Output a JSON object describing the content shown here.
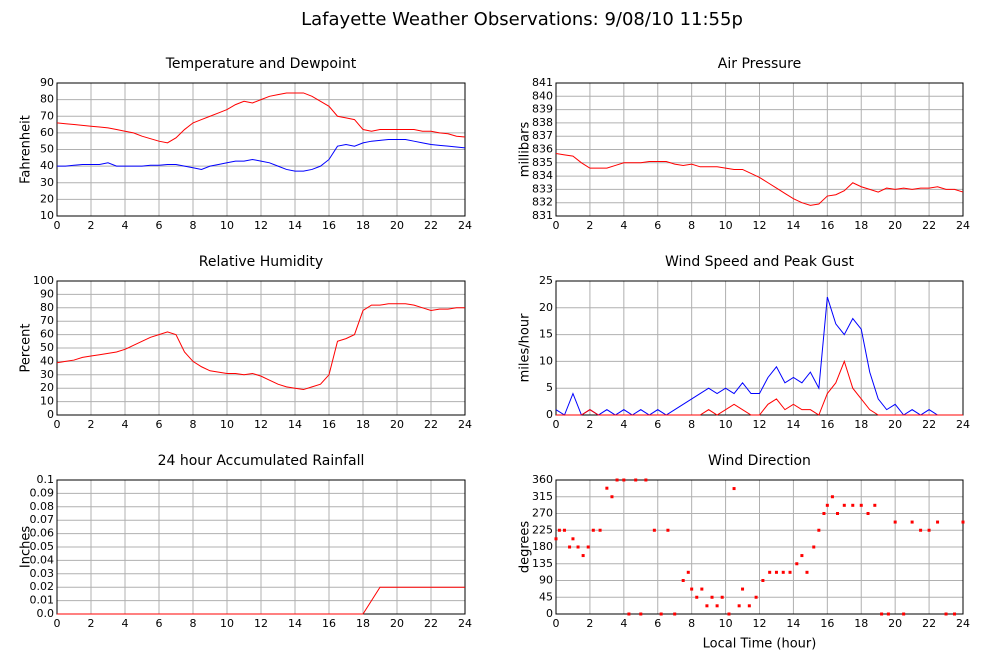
{
  "title": "Lafayette Weather Observations: 9/08/10 11:55p",
  "chart_data": [
    {
      "type": "line",
      "title": "Temperature and Dewpoint",
      "ylabel": "Fahrenheit",
      "grid": true,
      "x": [
        0,
        0.5,
        1,
        1.5,
        2,
        2.5,
        3,
        3.5,
        4,
        4.5,
        5,
        5.5,
        6,
        6.5,
        7,
        7.5,
        8,
        8.5,
        9,
        9.5,
        10,
        10.5,
        11,
        11.5,
        12,
        12.5,
        13,
        13.5,
        14,
        14.5,
        15,
        15.5,
        16,
        16.5,
        17,
        17.5,
        18,
        18.5,
        19,
        19.5,
        20,
        20.5,
        21,
        21.5,
        22,
        22.5,
        23,
        23.5,
        24
      ],
      "xlim": [
        0,
        24
      ],
      "xticks": [
        0,
        2,
        4,
        6,
        8,
        10,
        12,
        14,
        16,
        18,
        20,
        22,
        24
      ],
      "ylim": [
        10,
        90
      ],
      "yticks": [
        10,
        20,
        30,
        40,
        50,
        60,
        70,
        80,
        90
      ],
      "series": [
        {
          "color": "#ff0000",
          "values": [
            66,
            65.5,
            65,
            64.5,
            64,
            63.5,
            63,
            62,
            61,
            60,
            58,
            56.5,
            55,
            54,
            57,
            62,
            66,
            68,
            70,
            72,
            74,
            77,
            79,
            78,
            80,
            82,
            83,
            84,
            84,
            84,
            82,
            79,
            76,
            70,
            69,
            68,
            62,
            61,
            62,
            62,
            62,
            62,
            62,
            61,
            61,
            60,
            59.5,
            58,
            57.5
          ]
        },
        {
          "color": "#0000ff",
          "values": [
            40,
            40,
            40.5,
            41,
            41,
            41,
            42,
            40,
            40,
            40,
            40,
            40.5,
            40.5,
            41,
            41,
            40,
            39,
            38,
            40,
            41,
            42,
            43,
            43,
            44,
            43,
            42,
            40,
            38,
            37,
            37,
            38,
            40,
            44,
            52,
            53,
            52,
            54,
            55,
            55.5,
            56,
            56,
            56,
            55,
            54,
            53,
            52.5,
            52,
            51.5,
            51
          ]
        }
      ]
    },
    {
      "type": "line",
      "title": "Air Pressure",
      "ylabel": "millibars",
      "grid": true,
      "x": [
        0,
        0.5,
        1,
        1.5,
        2,
        2.5,
        3,
        3.5,
        4,
        4.5,
        5,
        5.5,
        6,
        6.5,
        7,
        7.5,
        8,
        8.5,
        9,
        9.5,
        10,
        10.5,
        11,
        11.5,
        12,
        12.5,
        13,
        13.5,
        14,
        14.5,
        15,
        15.5,
        16,
        16.5,
        17,
        17.5,
        18,
        18.5,
        19,
        19.5,
        20,
        20.5,
        21,
        21.5,
        22,
        22.5,
        23,
        23.5,
        24
      ],
      "xlim": [
        0,
        24
      ],
      "xticks": [
        0,
        2,
        4,
        6,
        8,
        10,
        12,
        14,
        16,
        18,
        20,
        22,
        24
      ],
      "ylim": [
        831,
        841
      ],
      "yticks": [
        831,
        832,
        833,
        834,
        835,
        836,
        837,
        838,
        839,
        840,
        841
      ],
      "series": [
        {
          "color": "#ff0000",
          "values": [
            835.7,
            835.6,
            835.5,
            835.0,
            834.6,
            834.6,
            834.6,
            834.8,
            835.0,
            835.0,
            835.0,
            835.1,
            835.1,
            835.1,
            834.9,
            834.8,
            834.9,
            834.7,
            834.7,
            834.7,
            834.6,
            834.5,
            834.5,
            834.2,
            833.9,
            833.5,
            833.1,
            832.7,
            832.3,
            832.0,
            831.8,
            831.9,
            832.5,
            832.6,
            832.9,
            833.5,
            833.2,
            833.0,
            832.8,
            833.1,
            833.0,
            833.1,
            833.0,
            833.1,
            833.1,
            833.2,
            833.0,
            833.0,
            832.8
          ]
        }
      ]
    },
    {
      "type": "line",
      "title": "Relative Humidity",
      "ylabel": "Percent",
      "grid": true,
      "x": [
        0,
        0.5,
        1,
        1.5,
        2,
        2.5,
        3,
        3.5,
        4,
        4.5,
        5,
        5.5,
        6,
        6.5,
        7,
        7.5,
        8,
        8.5,
        9,
        9.5,
        10,
        10.5,
        11,
        11.5,
        12,
        12.5,
        13,
        13.5,
        14,
        14.5,
        15,
        15.5,
        16,
        16.5,
        17,
        17.5,
        18,
        18.5,
        19,
        19.5,
        20,
        20.5,
        21,
        21.5,
        22,
        22.5,
        23,
        23.5,
        24
      ],
      "xlim": [
        0,
        24
      ],
      "xticks": [
        0,
        2,
        4,
        6,
        8,
        10,
        12,
        14,
        16,
        18,
        20,
        22,
        24
      ],
      "ylim": [
        0,
        100
      ],
      "yticks": [
        0,
        10,
        20,
        30,
        40,
        50,
        60,
        70,
        80,
        90,
        100
      ],
      "series": [
        {
          "color": "#ff0000",
          "values": [
            39,
            40,
            41,
            43,
            44,
            45,
            46,
            47,
            49,
            52,
            55,
            58,
            60,
            62,
            60,
            47,
            40,
            36,
            33,
            32,
            31,
            31,
            30,
            31,
            29,
            26,
            23,
            21,
            20,
            19,
            21,
            23,
            30,
            55,
            57,
            60,
            78,
            82,
            82,
            83,
            83,
            83,
            82,
            80,
            78,
            79,
            79,
            80,
            80
          ]
        }
      ]
    },
    {
      "type": "line",
      "title": "Wind Speed and Peak Gust",
      "ylabel": "miles/hour",
      "grid": true,
      "x": [
        0,
        0.5,
        1,
        1.5,
        2,
        2.5,
        3,
        3.5,
        4,
        4.5,
        5,
        5.5,
        6,
        6.5,
        7,
        7.5,
        8,
        8.5,
        9,
        9.5,
        10,
        10.5,
        11,
        11.5,
        12,
        12.5,
        13,
        13.5,
        14,
        14.5,
        15,
        15.5,
        16,
        16.5,
        17,
        17.5,
        18,
        18.5,
        19,
        19.5,
        20,
        20.5,
        21,
        21.5,
        22,
        22.5,
        23,
        23.5,
        24
      ],
      "xlim": [
        0,
        24
      ],
      "xticks": [
        0,
        2,
        4,
        6,
        8,
        10,
        12,
        14,
        16,
        18,
        20,
        22,
        24
      ],
      "ylim": [
        0,
        25
      ],
      "yticks": [
        0,
        5,
        10,
        15,
        20,
        25
      ],
      "series": [
        {
          "color": "#0000ff",
          "values": [
            1,
            0,
            4,
            0,
            1,
            0,
            1,
            0,
            1,
            0,
            1,
            0,
            1,
            0,
            1,
            2,
            3,
            4,
            5,
            4,
            5,
            4,
            6,
            4,
            4,
            7,
            9,
            6,
            7,
            6,
            8,
            5,
            22,
            17,
            15,
            18,
            16,
            8,
            3,
            1,
            2,
            0,
            1,
            0,
            1,
            0,
            0,
            0,
            0
          ]
        },
        {
          "color": "#ff0000",
          "values": [
            0,
            0,
            0,
            0,
            1,
            0,
            0,
            0,
            0,
            0,
            0,
            0,
            0,
            0,
            0,
            0,
            0,
            0,
            1,
            0,
            1,
            2,
            1,
            0,
            0,
            2,
            3,
            1,
            2,
            1,
            1,
            0,
            4,
            6,
            10,
            5,
            3,
            1,
            0,
            0,
            0,
            0,
            0,
            0,
            0,
            0,
            0,
            0,
            0
          ]
        }
      ]
    },
    {
      "type": "line",
      "title": "24 hour Accumulated Rainfall",
      "ylabel": "Inches",
      "grid": true,
      "x": [
        0,
        0.5,
        1,
        1.5,
        2,
        2.5,
        3,
        3.5,
        4,
        4.5,
        5,
        5.5,
        6,
        6.5,
        7,
        7.5,
        8,
        8.5,
        9,
        9.5,
        10,
        10.5,
        11,
        11.5,
        12,
        12.5,
        13,
        13.5,
        14,
        14.5,
        15,
        15.5,
        16,
        16.5,
        17,
        17.5,
        18,
        18.5,
        19,
        19.5,
        20,
        20.5,
        21,
        21.5,
        22,
        22.5,
        23,
        23.5,
        24
      ],
      "xlim": [
        0,
        24
      ],
      "xticks": [
        0,
        2,
        4,
        6,
        8,
        10,
        12,
        14,
        16,
        18,
        20,
        22,
        24
      ],
      "ylim": [
        0,
        0.1
      ],
      "yticks": [
        {
          "value": 0,
          "label": "0.0"
        },
        0.01,
        0.02,
        0.03,
        0.04,
        0.05,
        0.06,
        0.07,
        0.08,
        0.09,
        0.1
      ],
      "series": [
        {
          "color": "#ff0000",
          "values": [
            0,
            0,
            0,
            0,
            0,
            0,
            0,
            0,
            0,
            0,
            0,
            0,
            0,
            0,
            0,
            0,
            0,
            0,
            0,
            0,
            0,
            0,
            0,
            0,
            0,
            0,
            0,
            0,
            0,
            0,
            0,
            0,
            0,
            0,
            0,
            0,
            0,
            0.01,
            0.02,
            0.02,
            0.02,
            0.02,
            0.02,
            0.02,
            0.02,
            0.02,
            0.02,
            0.02,
            0.02
          ]
        }
      ]
    },
    {
      "type": "scatter",
      "title": "Wind Direction",
      "ylabel": "degrees",
      "xlabel": "Local Time (hour)",
      "grid": true,
      "x": [
        0,
        0.2,
        0.5,
        0.8,
        1,
        1.3,
        1.6,
        1.9,
        2.2,
        2.6,
        3,
        3.3,
        3.6,
        4,
        4.3,
        4.7,
        5,
        5.3,
        5.8,
        6.2,
        6.6,
        7,
        7.5,
        7.8,
        8,
        8.3,
        8.6,
        8.9,
        9.2,
        9.5,
        9.8,
        10.2,
        10.5,
        10.8,
        11,
        11.4,
        11.8,
        12.2,
        12.6,
        13,
        13.4,
        13.8,
        14.2,
        14.5,
        14.8,
        15.2,
        15.5,
        15.8,
        16,
        16.3,
        16.6,
        17,
        17.5,
        18,
        18.4,
        18.8,
        19.2,
        19.6,
        20,
        20.5,
        21,
        21.5,
        22,
        22.5,
        23,
        23.5,
        24
      ],
      "xlim": [
        0,
        24
      ],
      "xticks": [
        0,
        2,
        4,
        6,
        8,
        10,
        12,
        14,
        16,
        18,
        20,
        22,
        24
      ],
      "ylim": [
        0,
        360
      ],
      "yticks": [
        0,
        45,
        90,
        135,
        180,
        225,
        270,
        315,
        360
      ],
      "series": [
        {
          "color": "#ff0000",
          "values": [
            202,
            225,
            225,
            180,
            202,
            180,
            157,
            180,
            225,
            225,
            338,
            315,
            360,
            360,
            0,
            360,
            0,
            360,
            225,
            0,
            225,
            0,
            90,
            112,
            67,
            45,
            67,
            22,
            45,
            22,
            45,
            0,
            337,
            22,
            67,
            22,
            45,
            90,
            112,
            112,
            112,
            112,
            135,
            157,
            112,
            180,
            225,
            270,
            292,
            315,
            270,
            292,
            292,
            292,
            270,
            292,
            0,
            0,
            247,
            0,
            247,
            225,
            225,
            247,
            0,
            0,
            247
          ]
        }
      ]
    }
  ]
}
